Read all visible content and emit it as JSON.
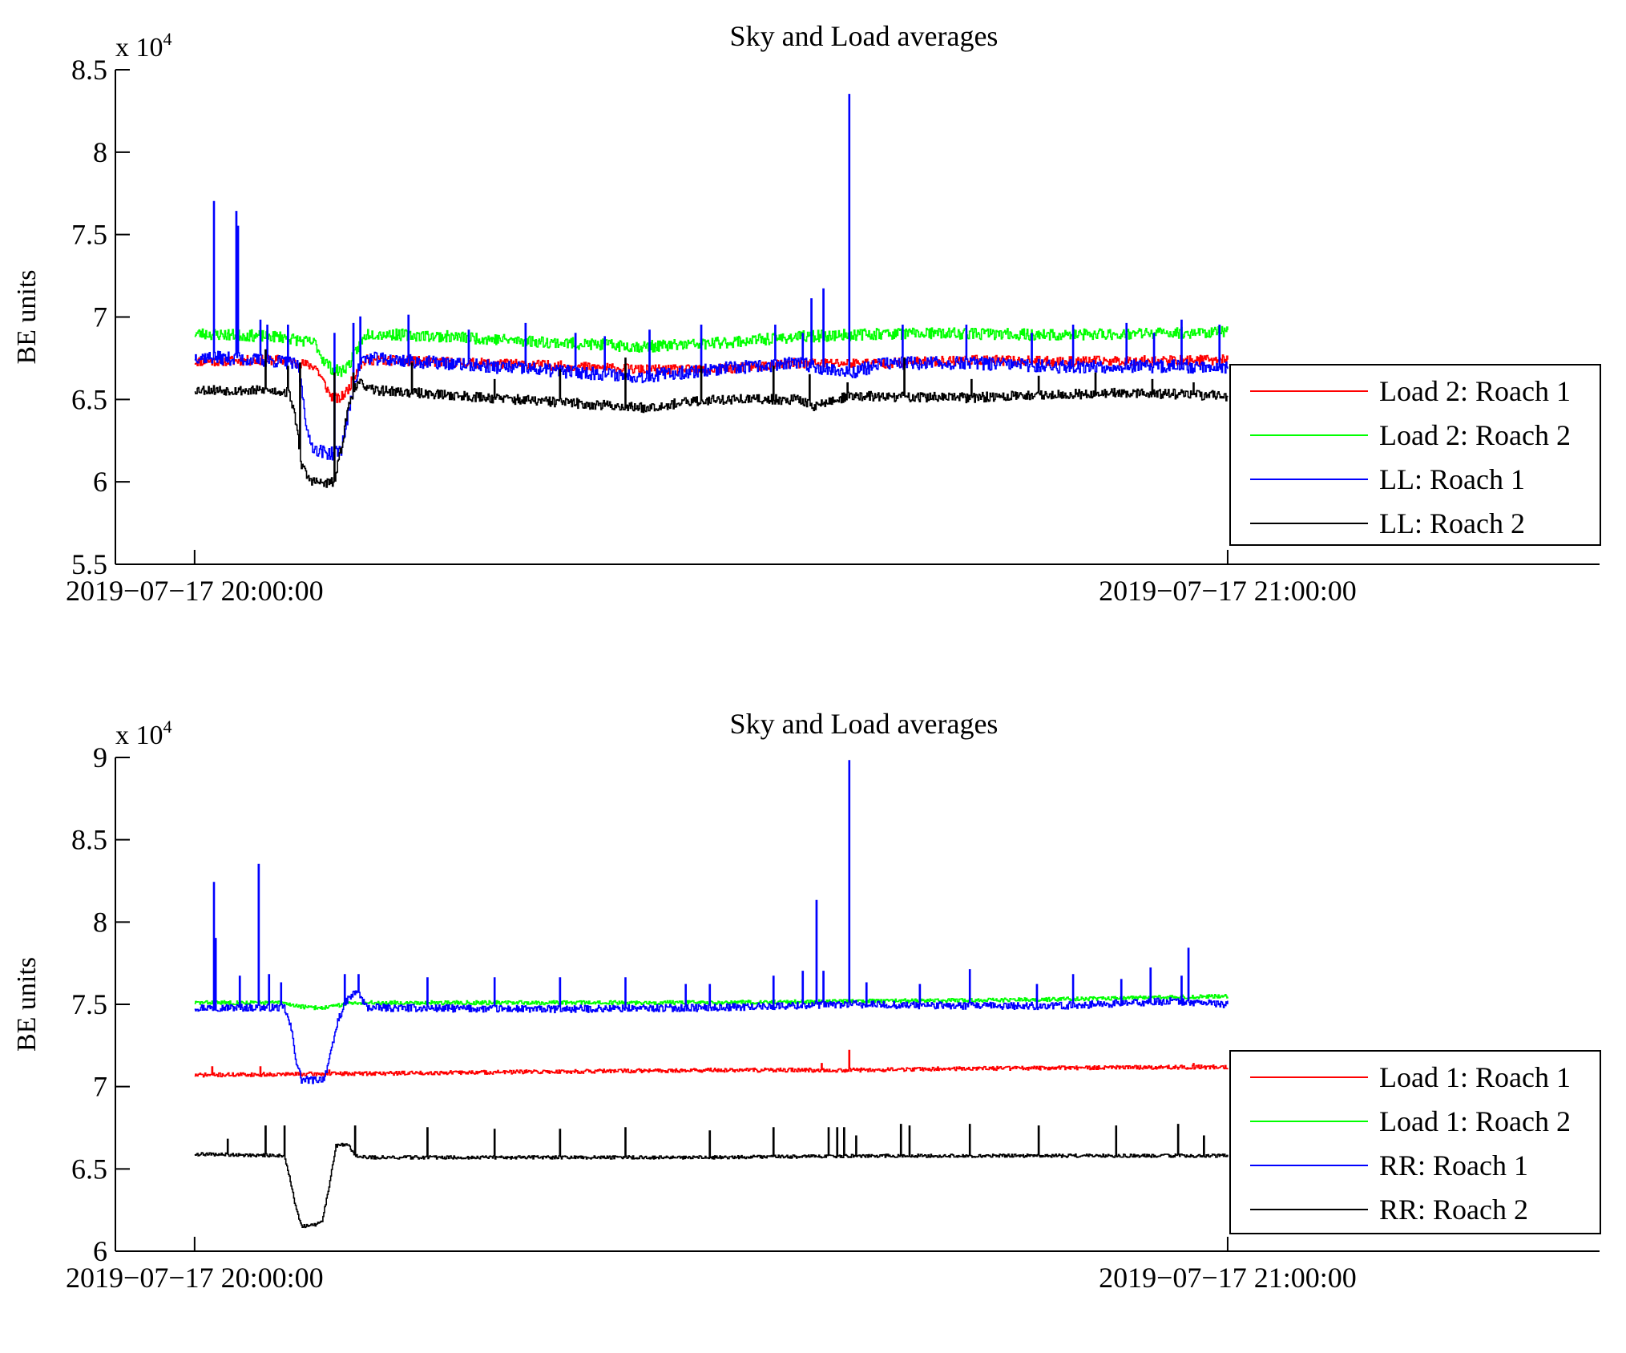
{
  "chart_data": [
    {
      "type": "line",
      "title": "Sky and Load averages",
      "xlabel": "",
      "ylabel": "BE units",
      "y_multiplier_label": "x 10",
      "y_multiplier_exponent": "4",
      "ylim": [
        5.5,
        8.5
      ],
      "y_ticks": [
        5.5,
        6,
        6.5,
        7,
        7.5,
        8,
        8.5
      ],
      "y_tick_labels": [
        "5.5",
        "6",
        "6.5",
        "7",
        "7.5",
        "8",
        "8.5"
      ],
      "x_range_minutes": [
        -4.6,
        81.6
      ],
      "x_ticks_minutes": [
        0,
        60
      ],
      "x_tick_labels": [
        "2019−07−17 20:00:00",
        "2019−07−17 21:00:00"
      ],
      "data_end_minutes": 60,
      "legend": "lower-right",
      "series": [
        {
          "name": "Load 2: Roach 1",
          "color": "#ff0000",
          "noise": 0.03,
          "seed": 11,
          "base": [
            [
              0,
              6.73
            ],
            [
              5,
              6.74
            ],
            [
              7,
              6.7
            ],
            [
              7.4,
              6.62
            ],
            [
              7.9,
              6.52
            ],
            [
              8.4,
              6.5
            ],
            [
              8.9,
              6.56
            ],
            [
              9.5,
              6.7
            ],
            [
              10,
              6.74
            ],
            [
              20,
              6.71
            ],
            [
              26,
              6.68
            ],
            [
              30,
              6.68
            ],
            [
              35,
              6.72
            ],
            [
              40,
              6.72
            ],
            [
              45,
              6.74
            ],
            [
              50,
              6.73
            ],
            [
              60,
              6.74
            ]
          ],
          "spikes": []
        },
        {
          "name": "Load 2: Roach 2",
          "color": "#00ff00",
          "noise": 0.035,
          "seed": 23,
          "base": [
            [
              0,
              6.9
            ],
            [
              5,
              6.88
            ],
            [
              7,
              6.84
            ],
            [
              7.4,
              6.75
            ],
            [
              8,
              6.68
            ],
            [
              8.5,
              6.67
            ],
            [
              9,
              6.72
            ],
            [
              9.5,
              6.82
            ],
            [
              10,
              6.9
            ],
            [
              15,
              6.88
            ],
            [
              20,
              6.85
            ],
            [
              26,
              6.82
            ],
            [
              30,
              6.84
            ],
            [
              35,
              6.88
            ],
            [
              40,
              6.9
            ],
            [
              45,
              6.9
            ],
            [
              50,
              6.89
            ],
            [
              55,
              6.9
            ],
            [
              60,
              6.91
            ]
          ],
          "spikes": []
        },
        {
          "name": "LL: Roach 1",
          "color": "#0000ff",
          "noise": 0.04,
          "seed": 37,
          "base": [
            [
              0,
              6.76
            ],
            [
              5,
              6.73
            ],
            [
              5.5,
              6.72
            ],
            [
              6,
              6.7
            ],
            [
              6.3,
              6.5
            ],
            [
              6.6,
              6.25
            ],
            [
              7,
              6.2
            ],
            [
              7.5,
              6.18
            ],
            [
              8,
              6.17
            ],
            [
              8.5,
              6.2
            ],
            [
              8.9,
              6.4
            ],
            [
              9.3,
              6.62
            ],
            [
              9.7,
              6.74
            ],
            [
              10,
              6.75
            ],
            [
              20,
              6.68
            ],
            [
              26,
              6.64
            ],
            [
              30,
              6.68
            ],
            [
              35,
              6.72
            ],
            [
              38,
              6.66
            ],
            [
              40,
              6.72
            ],
            [
              45,
              6.72
            ],
            [
              50,
              6.7
            ],
            [
              55,
              6.7
            ],
            [
              60,
              6.7
            ]
          ],
          "spikes": [
            [
              1.1,
              7.7
            ],
            [
              2.4,
              7.64
            ],
            [
              2.5,
              7.55
            ],
            [
              3.8,
              6.98
            ],
            [
              4.2,
              6.95
            ],
            [
              5.4,
              6.95
            ],
            [
              8.1,
              6.9
            ],
            [
              9.2,
              6.96
            ],
            [
              9.6,
              7.0
            ],
            [
              12.4,
              7.01
            ],
            [
              15.9,
              6.92
            ],
            [
              19.2,
              6.96
            ],
            [
              22.1,
              6.9
            ],
            [
              23.8,
              6.88
            ],
            [
              26.4,
              6.92
            ],
            [
              29.4,
              6.95
            ],
            [
              33.7,
              6.95
            ],
            [
              35.3,
              6.9
            ],
            [
              35.8,
              7.11
            ],
            [
              36.5,
              7.17
            ],
            [
              38.0,
              8.35
            ],
            [
              41.1,
              6.95
            ],
            [
              44.8,
              6.95
            ],
            [
              48.6,
              6.9
            ],
            [
              51.0,
              6.95
            ],
            [
              54.1,
              6.96
            ],
            [
              55.7,
              6.9
            ],
            [
              57.3,
              6.98
            ],
            [
              59.5,
              6.95
            ]
          ]
        },
        {
          "name": "LL: Roach 2",
          "color": "#000000",
          "noise": 0.03,
          "seed": 53,
          "base": [
            [
              0,
              6.56
            ],
            [
              5,
              6.55
            ],
            [
              5.5,
              6.54
            ],
            [
              5.9,
              6.35
            ],
            [
              6.2,
              6.1
            ],
            [
              6.6,
              6.02
            ],
            [
              7,
              6.0
            ],
            [
              7.5,
              5.99
            ],
            [
              8.1,
              6.0
            ],
            [
              8.5,
              6.2
            ],
            [
              8.9,
              6.45
            ],
            [
              9.3,
              6.58
            ],
            [
              9.8,
              6.6
            ],
            [
              10,
              6.56
            ],
            [
              20,
              6.49
            ],
            [
              26,
              6.45
            ],
            [
              30,
              6.5
            ],
            [
              35,
              6.5
            ],
            [
              36,
              6.46
            ],
            [
              38,
              6.52
            ],
            [
              45,
              6.51
            ],
            [
              50,
              6.53
            ],
            [
              55,
              6.54
            ],
            [
              60,
              6.52
            ]
          ],
          "spikes": [
            [
              4.1,
              6.8
            ],
            [
              5.4,
              6.7
            ],
            [
              6.1,
              6.72
            ],
            [
              8.1,
              6.66
            ],
            [
              9.2,
              6.66
            ],
            [
              12.6,
              6.72
            ],
            [
              17.4,
              6.62
            ],
            [
              21.2,
              6.68
            ],
            [
              25.0,
              6.75
            ],
            [
              29.4,
              6.7
            ],
            [
              33.6,
              6.7
            ],
            [
              35.7,
              6.65
            ],
            [
              37.9,
              6.6
            ],
            [
              41.2,
              6.75
            ],
            [
              45.1,
              6.62
            ],
            [
              49.0,
              6.64
            ],
            [
              52.3,
              6.66
            ],
            [
              55.6,
              6.62
            ],
            [
              58.0,
              6.6
            ]
          ]
        }
      ]
    },
    {
      "type": "line",
      "title": "Sky and Load averages",
      "xlabel": "",
      "ylabel": "BE units",
      "y_multiplier_label": "x 10",
      "y_multiplier_exponent": "4",
      "ylim": [
        6,
        9
      ],
      "y_ticks": [
        6,
        6.5,
        7,
        7.5,
        8,
        8.5,
        9
      ],
      "y_tick_labels": [
        "6",
        "6.5",
        "7",
        "7.5",
        "8",
        "8.5",
        "9"
      ],
      "x_range_minutes": [
        -4.6,
        81.6
      ],
      "x_ticks_minutes": [
        0,
        60
      ],
      "x_tick_labels": [
        "2019−07−17 20:00:00",
        "2019−07−17 21:00:00"
      ],
      "data_end_minutes": 60,
      "legend": "lower-right",
      "series": [
        {
          "name": "Load 1: Roach 1",
          "color": "#ff0000",
          "noise": 0.012,
          "seed": 71,
          "base": [
            [
              0,
              7.07
            ],
            [
              10,
              7.08
            ],
            [
              20,
              7.09
            ],
            [
              30,
              7.1
            ],
            [
              38,
              7.1
            ],
            [
              45,
              7.11
            ],
            [
              60,
              7.12
            ]
          ],
          "spikes": [
            [
              1.0,
              7.12
            ],
            [
              3.8,
              7.12
            ],
            [
              7.8,
              7.1
            ],
            [
              38.0,
              7.22
            ],
            [
              36.4,
              7.14
            ],
            [
              58.0,
              7.14
            ]
          ]
        },
        {
          "name": "Load 1: Roach 2",
          "color": "#00ff00",
          "noise": 0.012,
          "seed": 83,
          "base": [
            [
              0,
              7.51
            ],
            [
              5,
              7.51
            ],
            [
              6,
              7.49
            ],
            [
              6.6,
              7.48
            ],
            [
              7.4,
              7.48
            ],
            [
              8.2,
              7.49
            ],
            [
              9,
              7.51
            ],
            [
              10,
              7.51
            ],
            [
              30,
              7.51
            ],
            [
              40,
              7.52
            ],
            [
              50,
              7.53
            ],
            [
              60,
              7.55
            ]
          ],
          "spikes": []
        },
        {
          "name": "RR: Roach 1",
          "color": "#0000ff",
          "noise": 0.022,
          "seed": 97,
          "base": [
            [
              0,
              7.48
            ],
            [
              5.2,
              7.48
            ],
            [
              5.6,
              7.35
            ],
            [
              5.9,
              7.15
            ],
            [
              6.2,
              7.04
            ],
            [
              7,
              7.04
            ],
            [
              7.5,
              7.05
            ],
            [
              7.9,
              7.2
            ],
            [
              8.3,
              7.4
            ],
            [
              8.8,
              7.52
            ],
            [
              9.4,
              7.58
            ],
            [
              10,
              7.48
            ],
            [
              20,
              7.47
            ],
            [
              30,
              7.48
            ],
            [
              38,
              7.5
            ],
            [
              45,
              7.49
            ],
            [
              50,
              7.49
            ],
            [
              57,
              7.52
            ],
            [
              60,
              7.5
            ]
          ],
          "spikes": [
            [
              1.1,
              8.24
            ],
            [
              1.2,
              7.9
            ],
            [
              2.6,
              7.67
            ],
            [
              3.7,
              8.35
            ],
            [
              4.3,
              7.68
            ],
            [
              5.0,
              7.63
            ],
            [
              8.7,
              7.68
            ],
            [
              9.5,
              7.68
            ],
            [
              13.5,
              7.66
            ],
            [
              17.4,
              7.66
            ],
            [
              21.2,
              7.66
            ],
            [
              25.0,
              7.66
            ],
            [
              28.5,
              7.62
            ],
            [
              29.9,
              7.62
            ],
            [
              33.6,
              7.67
            ],
            [
              35.3,
              7.7
            ],
            [
              36.1,
              8.13
            ],
            [
              36.5,
              7.7
            ],
            [
              38.0,
              8.98
            ],
            [
              39.0,
              7.63
            ],
            [
              42.1,
              7.62
            ],
            [
              45.0,
              7.71
            ],
            [
              48.9,
              7.62
            ],
            [
              51.0,
              7.68
            ],
            [
              53.8,
              7.65
            ],
            [
              55.5,
              7.72
            ],
            [
              57.3,
              7.67
            ],
            [
              57.7,
              7.84
            ]
          ]
        },
        {
          "name": "RR: Roach 2",
          "color": "#000000",
          "noise": 0.01,
          "seed": 109,
          "base": [
            [
              0,
              6.59
            ],
            [
              5.2,
              6.58
            ],
            [
              5.5,
              6.45
            ],
            [
              5.9,
              6.25
            ],
            [
              6.2,
              6.15
            ],
            [
              7,
              6.16
            ],
            [
              7.4,
              6.18
            ],
            [
              7.8,
              6.4
            ],
            [
              8.2,
              6.64
            ],
            [
              8.9,
              6.65
            ],
            [
              9.3,
              6.58
            ],
            [
              10,
              6.57
            ],
            [
              30,
              6.57
            ],
            [
              40,
              6.58
            ],
            [
              50,
              6.58
            ],
            [
              60,
              6.58
            ]
          ],
          "spikes": [
            [
              1.9,
              6.68
            ],
            [
              4.1,
              6.76
            ],
            [
              5.2,
              6.76
            ],
            [
              9.3,
              6.76
            ],
            [
              13.5,
              6.75
            ],
            [
              17.4,
              6.74
            ],
            [
              21.2,
              6.74
            ],
            [
              25.0,
              6.75
            ],
            [
              29.9,
              6.73
            ],
            [
              33.6,
              6.75
            ],
            [
              36.8,
              6.75
            ],
            [
              37.3,
              6.75
            ],
            [
              37.7,
              6.75
            ],
            [
              38.4,
              6.7
            ],
            [
              41.0,
              6.77
            ],
            [
              41.5,
              6.76
            ],
            [
              45.0,
              6.77
            ],
            [
              49.0,
              6.76
            ],
            [
              53.5,
              6.76
            ],
            [
              57.1,
              6.77
            ],
            [
              58.6,
              6.7
            ]
          ]
        }
      ]
    }
  ]
}
